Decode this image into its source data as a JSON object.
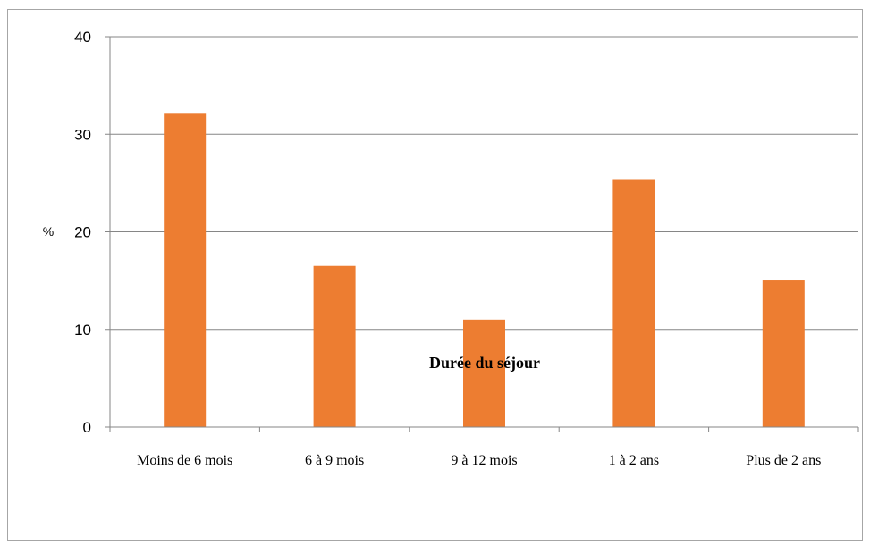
{
  "chart_data": {
    "type": "bar",
    "title": "",
    "xlabel": "Durée du séjour",
    "ylabel": "%",
    "categories": [
      "Moins de 6 mois",
      "6 à 9 mois",
      "9 à 12 mois",
      "1 à 2 ans",
      "Plus de 2 ans"
    ],
    "series": [
      {
        "values": [
          32.1,
          16.5,
          11.0,
          25.4,
          15.1
        ]
      }
    ],
    "ylim": [
      0,
      40
    ],
    "yticks": [
      0,
      10,
      20,
      30,
      40
    ],
    "grid": true,
    "legend": "none",
    "colors": {
      "bar": "#ED7D31",
      "grid": "#868686",
      "axis": "#868686"
    }
  }
}
